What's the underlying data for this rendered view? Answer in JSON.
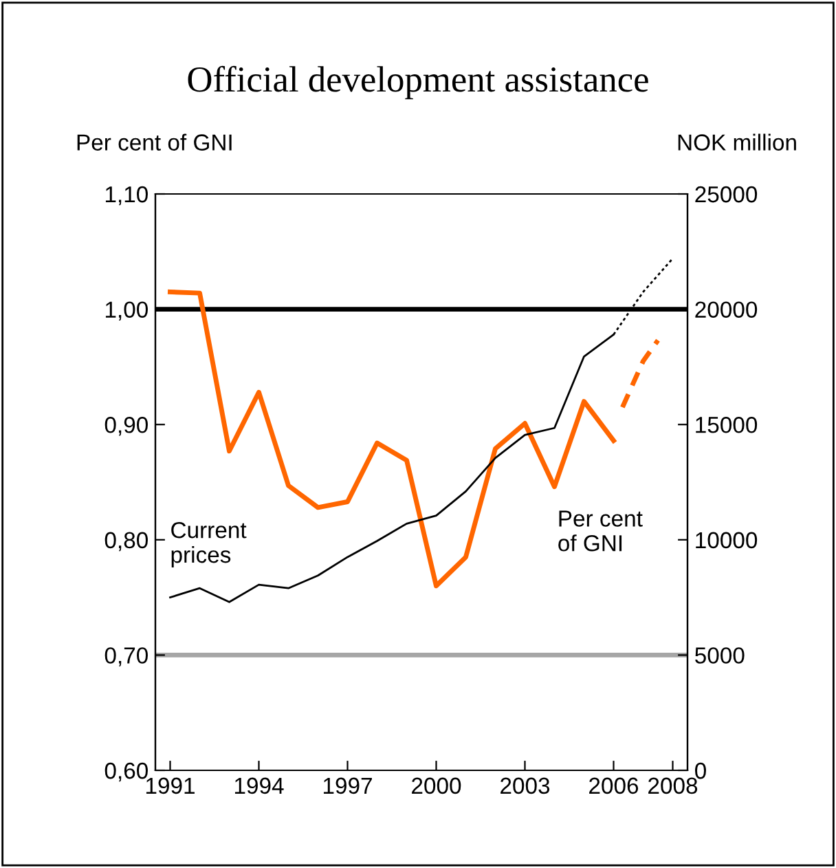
{
  "chart_data": {
    "type": "line",
    "title": "Official development assistance",
    "ylabel": "Per cent of GNI",
    "y2label": "NOK million",
    "xlim": [
      1990.5,
      2008.5
    ],
    "xticks": [
      1991,
      1994,
      1997,
      2000,
      2003,
      2006,
      2008
    ],
    "ylim": [
      0.6,
      1.1
    ],
    "yticks": [
      {
        "value": 0.6,
        "label": "0,60"
      },
      {
        "value": 0.7,
        "label": "0,70"
      },
      {
        "value": 0.8,
        "label": "0,80"
      },
      {
        "value": 0.9,
        "label": "0,90"
      },
      {
        "value": 1.0,
        "label": "1,00"
      },
      {
        "value": 1.1,
        "label": "1,10"
      }
    ],
    "y2lim": [
      0,
      25000
    ],
    "y2ticks": [
      0,
      5000,
      10000,
      15000,
      20000,
      25000
    ],
    "grid": false,
    "legend": false,
    "marker": "none",
    "ref_lines": [
      {
        "axis": "y",
        "value": 1.0,
        "color": "#000000"
      },
      {
        "axis": "y",
        "value": 0.7,
        "color": "#a6a6a6"
      }
    ],
    "series": [
      {
        "name": "Per cent\nof GNI",
        "color": "#ff6600",
        "line_style": "solid",
        "x": [
          1991,
          1992,
          1993,
          1994,
          1995,
          1996,
          1997,
          1998,
          1999,
          2000,
          2001,
          2002,
          2003,
          2004,
          2005,
          2006
        ],
        "values": [
          1.015,
          1.014,
          0.877,
          0.928,
          0.847,
          0.828,
          0.833,
          0.884,
          0.869,
          0.76,
          0.785,
          0.879,
          0.901,
          0.846,
          0.92,
          0.886
        ]
      },
      {
        "color": "#ff6600",
        "line_style": "dashed",
        "x": [
          2006.3,
          2007,
          2007.5
        ],
        "values": [
          0.915,
          0.955,
          0.973
        ]
      },
      {
        "name": "Current\nprices",
        "color": "#000000",
        "axis": "y2",
        "line_style": "solid",
        "x": [
          1991,
          1992,
          1993,
          1994,
          1995,
          1996,
          1997,
          1998,
          1999,
          2000,
          2001,
          2002,
          2003,
          2004,
          2005,
          2006
        ],
        "values": [
          7500,
          7900,
          7300,
          8050,
          7900,
          8450,
          9250,
          9950,
          10700,
          11050,
          12100,
          13550,
          14550,
          14850,
          17950,
          18900
        ]
      },
      {
        "color": "#000000",
        "axis": "y2",
        "line_style": "dotted",
        "x": [
          2006,
          2007,
          2008
        ],
        "values": [
          18900,
          20750,
          22200
        ]
      }
    ]
  }
}
